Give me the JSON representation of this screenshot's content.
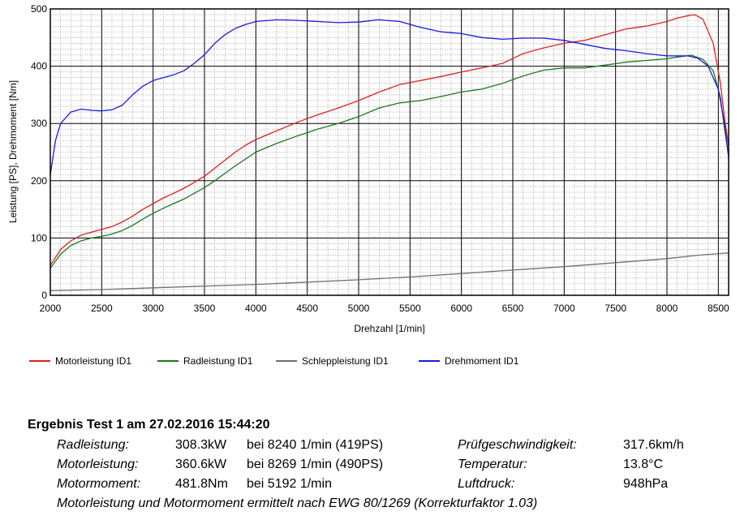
{
  "chart_data": {
    "type": "line",
    "xlabel": "Drehzahl [1/min]",
    "ylabel": "Leistung [PS], Drehmoment [Nm]",
    "xlim": [
      2000,
      8600
    ],
    "ylim": [
      0,
      500
    ],
    "xticks": [
      2000,
      2500,
      3000,
      3500,
      4000,
      4500,
      5000,
      5500,
      6000,
      6500,
      7000,
      7500,
      8000,
      8500
    ],
    "yticks": [
      0,
      100,
      200,
      300,
      400,
      500
    ],
    "grid": true,
    "legend_position": "bottom",
    "series": [
      {
        "name": "Motorleistung ID1",
        "color": "#e02020",
        "x": [
          2000,
          2100,
          2200,
          2300,
          2400,
          2500,
          2600,
          2700,
          2800,
          2900,
          3000,
          3100,
          3200,
          3300,
          3400,
          3500,
          3600,
          3700,
          3800,
          3900,
          4000,
          4200,
          4400,
          4600,
          4800,
          5000,
          5200,
          5400,
          5600,
          5800,
          6000,
          6200,
          6400,
          6600,
          6800,
          7000,
          7200,
          7400,
          7600,
          7800,
          8000,
          8100,
          8200,
          8269,
          8350,
          8450,
          8520,
          8560,
          8600
        ],
        "y": [
          52,
          80,
          95,
          105,
          110,
          115,
          120,
          128,
          138,
          150,
          160,
          170,
          178,
          187,
          197,
          208,
          222,
          236,
          250,
          262,
          272,
          287,
          302,
          315,
          327,
          340,
          355,
          368,
          375,
          382,
          390,
          397,
          405,
          422,
          432,
          440,
          445,
          455,
          465,
          470,
          478,
          484,
          488,
          490,
          482,
          440,
          370,
          310,
          260
        ]
      },
      {
        "name": "Radleistung ID1",
        "color": "#1a7a1a",
        "x": [
          2000,
          2100,
          2200,
          2300,
          2400,
          2500,
          2600,
          2700,
          2800,
          2900,
          3000,
          3100,
          3200,
          3300,
          3400,
          3500,
          3600,
          3700,
          3800,
          3900,
          4000,
          4200,
          4400,
          4600,
          4800,
          5000,
          5200,
          5400,
          5600,
          5800,
          6000,
          6200,
          6400,
          6600,
          6800,
          7000,
          7200,
          7400,
          7600,
          7800,
          8000,
          8100,
          8240,
          8350,
          8450,
          8520,
          8560,
          8600
        ],
        "y": [
          47,
          72,
          87,
          95,
          100,
          103,
          107,
          113,
          122,
          133,
          143,
          152,
          160,
          168,
          178,
          188,
          200,
          213,
          226,
          238,
          250,
          265,
          278,
          290,
          300,
          312,
          327,
          336,
          340,
          347,
          355,
          360,
          370,
          383,
          393,
          397,
          397,
          402,
          407,
          410,
          413,
          416,
          419,
          412,
          392,
          345,
          290,
          245
        ]
      },
      {
        "name": "Schleppleistung ID1",
        "color": "#707070",
        "x": [
          2000,
          2500,
          3000,
          3500,
          4000,
          4500,
          5000,
          5500,
          6000,
          6500,
          7000,
          7500,
          8000,
          8300,
          8600
        ],
        "y": [
          8,
          10,
          13,
          16,
          19,
          23,
          27,
          32,
          38,
          44,
          50,
          57,
          64,
          70,
          74
        ]
      },
      {
        "name": "Drehmoment ID1",
        "color": "#1a1ae0",
        "x": [
          2000,
          2050,
          2100,
          2200,
          2300,
          2400,
          2500,
          2600,
          2700,
          2800,
          2900,
          3000,
          3100,
          3200,
          3300,
          3400,
          3500,
          3600,
          3700,
          3800,
          3900,
          4000,
          4200,
          4400,
          4600,
          4800,
          5000,
          5192,
          5400,
          5600,
          5800,
          6000,
          6200,
          6400,
          6600,
          6800,
          7000,
          7200,
          7400,
          7600,
          7800,
          8000,
          8200,
          8300,
          8400,
          8500,
          8560,
          8600
        ],
        "y": [
          210,
          270,
          300,
          320,
          325,
          323,
          322,
          324,
          332,
          350,
          365,
          375,
          380,
          385,
          392,
          405,
          420,
          440,
          455,
          466,
          473,
          478,
          481,
          480,
          478,
          476,
          477,
          481,
          478,
          468,
          460,
          457,
          450,
          447,
          449,
          449,
          445,
          438,
          431,
          427,
          422,
          418,
          418,
          414,
          400,
          360,
          300,
          240
        ]
      }
    ]
  },
  "results": {
    "title": "Ergebnis Test 1 am 27.02.2016 15:44:20",
    "rows": [
      {
        "label": "Radleistung:",
        "value": "308.3kW",
        "detail": "bei 8240 1/min (419PS)",
        "label2": "Prüfgeschwindigkeit:",
        "value2": "317.6km/h"
      },
      {
        "label": "Motorleistung:",
        "value": "360.6kW",
        "detail": "bei 8269 1/min (490PS)",
        "label2": "Temperatur:",
        "value2": "13.8°C"
      },
      {
        "label": "Motormoment:",
        "value": "481.8Nm",
        "detail": "bei 5192 1/min",
        "label2": "Luftdruck:",
        "value2": "948hPa"
      }
    ],
    "footnote": "Motorleistung und Motormoment ermittelt nach EWG 80/1269 (Korrekturfaktor 1.03)"
  }
}
